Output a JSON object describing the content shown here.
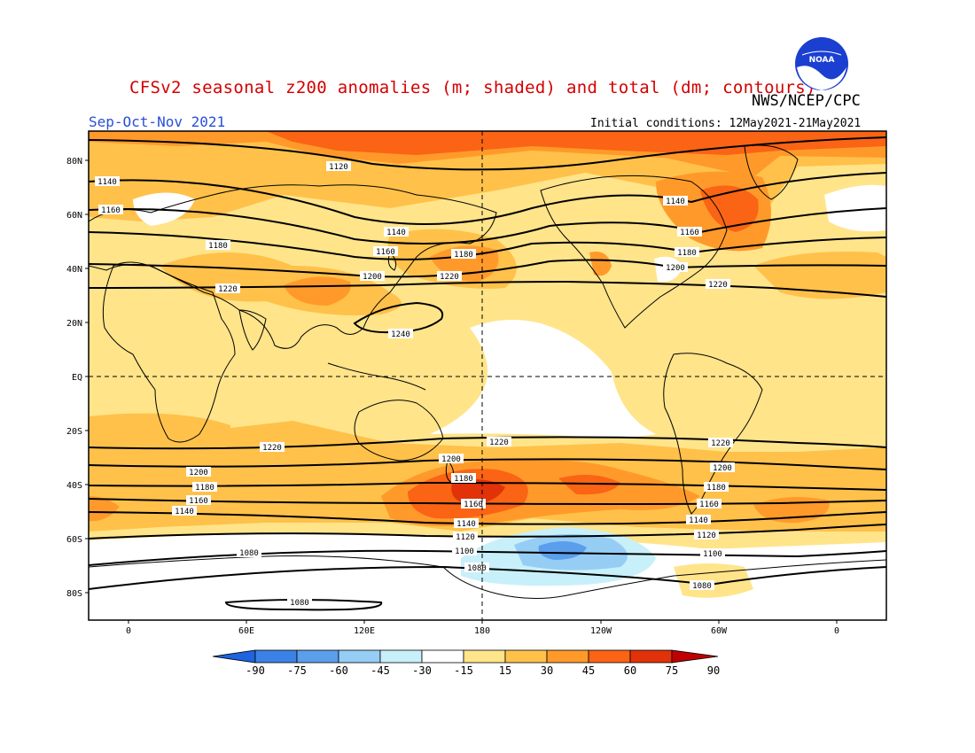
{
  "header": {
    "title": "CFSv2 seasonal z200 anomalies (m; shaded) and total (dm; contours)",
    "agency": "NWS/NCEP/CPC",
    "season": "Sep-Oct-Nov 2021",
    "initial_conditions": "Initial conditions: 12May2021-21May2021",
    "logo_text": "NOAA"
  },
  "map": {
    "lat_labels": [
      "80N",
      "60N",
      "40N",
      "20N",
      "EQ",
      "20S",
      "40S",
      "60S",
      "80S"
    ],
    "lon_labels": [
      "0",
      "60E",
      "120E",
      "180",
      "120W",
      "60W",
      "0"
    ],
    "contour_labels": [
      "1120",
      "1140",
      "1160",
      "1180",
      "1200",
      "1220",
      "1240",
      "1100",
      "1080"
    ]
  },
  "colorbar": {
    "levels": [
      "-90",
      "-75",
      "-60",
      "-45",
      "-30",
      "-15",
      "15",
      "30",
      "45",
      "60",
      "75",
      "90"
    ],
    "colors": [
      "#1e64e0",
      "#3c82e6",
      "#5a9eec",
      "#96cdf5",
      "#c8f0fa",
      "#ffffff",
      "#ffe48a",
      "#ffc14a",
      "#ff9a2a",
      "#fa6414",
      "#e1320a",
      "#c00000"
    ]
  },
  "colors": {
    "title": "#d40000",
    "season": "#2a4fd6",
    "base_anomaly": "#ffe48a"
  }
}
